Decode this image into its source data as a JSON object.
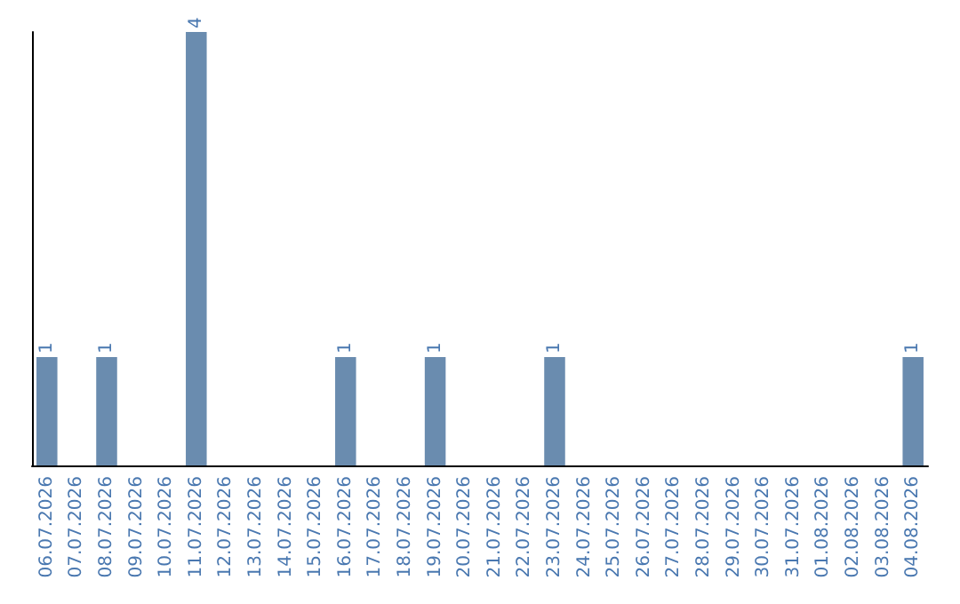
{
  "chart_data": {
    "type": "bar",
    "categories": [
      "06.07.2026",
      "07.07.2026",
      "08.07.2026",
      "09.07.2026",
      "10.07.2026",
      "11.07.2026",
      "12.07.2026",
      "13.07.2026",
      "14.07.2026",
      "15.07.2026",
      "16.07.2026",
      "17.07.2026",
      "18.07.2026",
      "19.07.2026",
      "20.07.2026",
      "21.07.2026",
      "22.07.2026",
      "23.07.2026",
      "24.07.2026",
      "25.07.2026",
      "26.07.2026",
      "27.07.2026",
      "28.07.2026",
      "29.07.2026",
      "30.07.2026",
      "31.07.2026",
      "01.08.2026",
      "02.08.2026",
      "03.08.2026",
      "04.08.2026"
    ],
    "values": [
      1,
      0,
      1,
      0,
      0,
      4,
      0,
      0,
      0,
      0,
      1,
      0,
      0,
      1,
      0,
      0,
      0,
      1,
      0,
      0,
      0,
      0,
      0,
      0,
      0,
      0,
      0,
      0,
      0,
      1
    ],
    "value_labels": [
      "1",
      null,
      "1",
      null,
      null,
      "4",
      null,
      null,
      null,
      null,
      "1",
      null,
      null,
      "1",
      null,
      null,
      null,
      "1",
      null,
      null,
      null,
      null,
      null,
      null,
      null,
      null,
      null,
      null,
      null,
      "1"
    ],
    "color": "#6a8caf",
    "tick_labels": "x",
    "grid": false
  }
}
